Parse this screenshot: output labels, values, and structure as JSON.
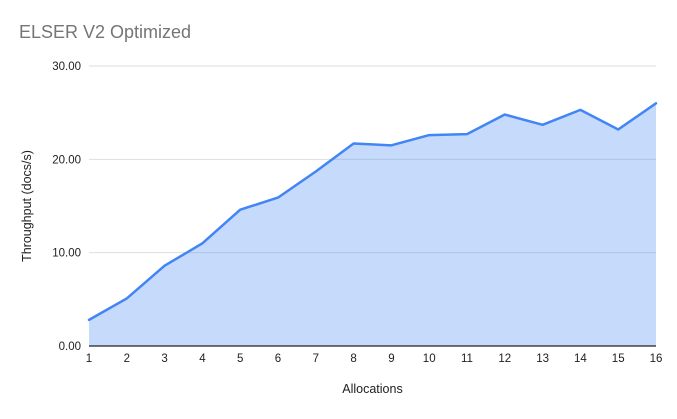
{
  "chart_data": {
    "type": "area",
    "title": "ELSER V2 Optimized",
    "xlabel": "Allocations",
    "ylabel": "Throughput (docs/s)",
    "x": [
      1,
      2,
      3,
      4,
      5,
      6,
      7,
      8,
      9,
      10,
      11,
      12,
      13,
      14,
      15,
      16
    ],
    "values": [
      2.8,
      5.1,
      8.6,
      11.0,
      14.6,
      15.9,
      18.7,
      21.7,
      21.5,
      22.6,
      22.7,
      24.8,
      23.7,
      25.3,
      23.2,
      26.0
    ],
    "ylim": [
      0,
      30
    ],
    "yticks": [
      0,
      10,
      20,
      30
    ],
    "ytick_labels": [
      "0.00",
      "10.00",
      "20.00",
      "30.00"
    ],
    "grid": true,
    "legend": "none",
    "colors": {
      "line": "#4285f4",
      "fill": "#4285f4",
      "fill_opacity": 0.3,
      "gridline": "#dedede",
      "axis_line": "#212121",
      "tick_text": "#202124",
      "axis_title_text": "#202124",
      "title_text": "#757575",
      "background": "#ffffff"
    }
  }
}
